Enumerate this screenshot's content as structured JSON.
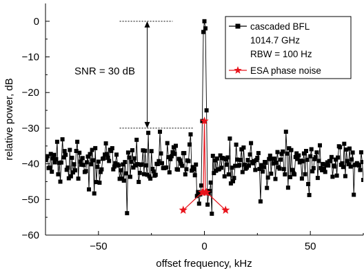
{
  "chart_data": {
    "type": "line",
    "xlabel": "offset frequency, kHz",
    "ylabel": "relative power, dB",
    "xlim": [
      -75,
      75
    ],
    "ylim": [
      -60,
      5
    ],
    "xticks": [
      -50,
      0,
      50
    ],
    "xtick_labels": [
      "−50",
      "0",
      "50"
    ],
    "yticks": [
      0,
      -10,
      -20,
      -30,
      -40,
      -50,
      -60
    ],
    "ytick_labels": [
      "0",
      "−10",
      "−20",
      "−30",
      "−40",
      "−50",
      "−60"
    ],
    "grid": false,
    "legend": {
      "position": "top-right",
      "entries": [
        "cascaded BFL",
        "1014.7 GHz",
        "RBW = 100 Hz",
        "ESA phase noise"
      ]
    },
    "annotations": {
      "snr_text": "SNR = 30 dB",
      "snr_top_db": 0,
      "snr_bottom_db": -30,
      "snr_x_khz": -27,
      "top_ref_x": [
        -40,
        -15
      ],
      "bottom_ref_x": [
        -40,
        -5
      ]
    },
    "series": [
      {
        "name": "cascaded BFL",
        "color": "#000000",
        "marker": "square",
        "peak_x": [
          -1.0,
          -0.5,
          0.0,
          0.5,
          1.0
        ],
        "peak_y": [
          -28,
          -3,
          0,
          -2,
          -25
        ],
        "noise_floor_db": -40,
        "noise_spread_db": 6,
        "x_step_khz": 0.5
      },
      {
        "name": "ESA phase noise",
        "color": "#e8141c",
        "marker": "star",
        "x": [
          -10,
          -1,
          -0.5,
          0,
          0.5,
          1,
          10
        ],
        "y": [
          -53,
          -48,
          -48,
          -28,
          -48,
          -48,
          -53
        ]
      }
    ]
  }
}
